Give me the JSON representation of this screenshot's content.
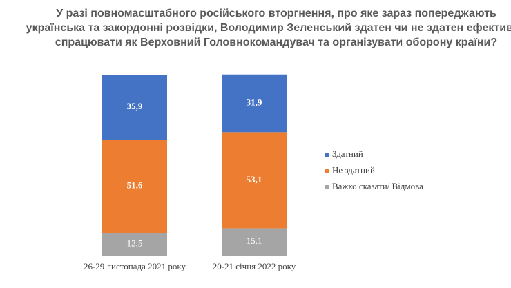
{
  "chart_data": {
    "type": "stacked_bar",
    "title": [
      "У разі повномасштабного російського вторгнення, про яке зараз попереджають",
      "українська та закордонні розвідки, Володимир Зеленський здатен чи не здатен ефективно",
      "спрацювати як Верховний Головнокомандувач та організувати оборону країни?"
    ],
    "categories": [
      "26-29 листопада 2021 року",
      "20-21 січня 2022 року"
    ],
    "series": [
      {
        "name": "Здатний",
        "color": "#4472c4",
        "values": [
          35.9,
          31.9
        ],
        "value_labels": [
          "35,9",
          "31,9"
        ]
      },
      {
        "name": "Не здатний",
        "color": "#ed7d31",
        "values": [
          51.6,
          53.1
        ],
        "value_labels": [
          "51,6",
          "53,1"
        ]
      },
      {
        "name": "Важко сказати/ Відмова",
        "color": "#a5a5a5",
        "values": [
          12.5,
          15.1
        ],
        "value_labels": [
          "12,5",
          "15,1"
        ]
      }
    ],
    "legend": "right"
  }
}
